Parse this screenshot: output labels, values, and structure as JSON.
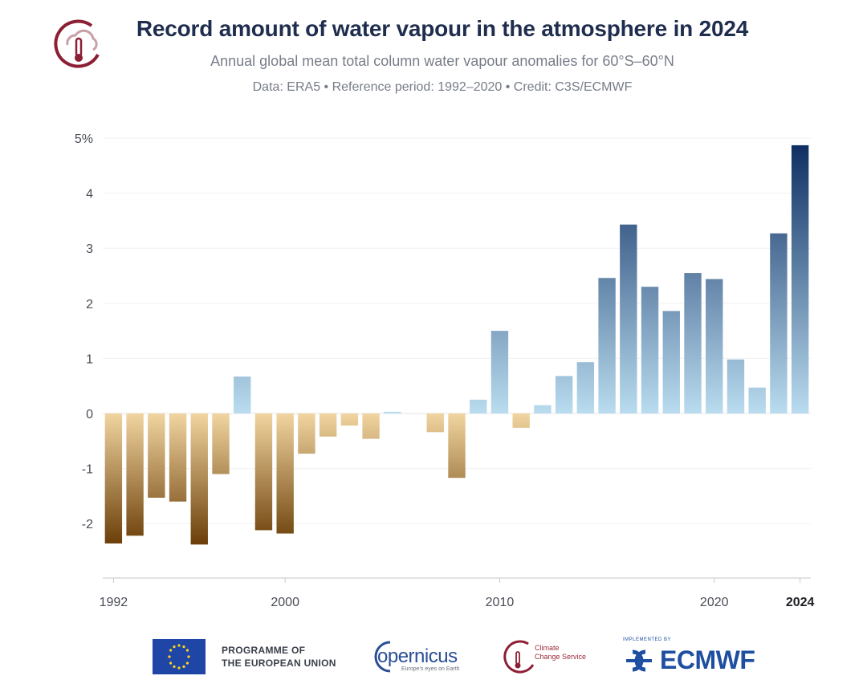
{
  "header": {
    "title": "Record amount of water vapour in the atmosphere in 2024",
    "subtitle": "Annual global mean total column water vapour anomalies for 60°S–60°N",
    "credit": "Data: ERA5 • Reference period: 1992–2020 • Credit: C3S/ECMWF"
  },
  "chart_data": {
    "type": "bar",
    "title": "Record amount of water vapour in the atmosphere in 2024",
    "xlabel": "",
    "ylabel": "",
    "ylim": [
      -2.9,
      5.0
    ],
    "yticks": [
      {
        "value": 5,
        "label": "5%"
      },
      {
        "value": 4,
        "label": "4"
      },
      {
        "value": 3,
        "label": "3"
      },
      {
        "value": 2,
        "label": "2"
      },
      {
        "value": 1,
        "label": "1"
      },
      {
        "value": 0,
        "label": "0"
      },
      {
        "value": -1,
        "label": "-1"
      },
      {
        "value": -2,
        "label": "-2"
      }
    ],
    "xticks": [
      {
        "year": 1992,
        "label": "1992",
        "bold": false
      },
      {
        "year": 2000,
        "label": "2000",
        "bold": false
      },
      {
        "year": 2010,
        "label": "2010",
        "bold": false
      },
      {
        "year": 2020,
        "label": "2020",
        "bold": false
      },
      {
        "year": 2024,
        "label": "2024",
        "bold": true
      }
    ],
    "grid": true,
    "legend": "none",
    "colors": {
      "negative_dark": "#6b3e08",
      "negative_light": "#f1d5a0",
      "positive_light": "#b9dcef",
      "positive_dark": "#0f2f63"
    },
    "categories": [
      1992,
      1993,
      1994,
      1995,
      1996,
      1997,
      1998,
      1999,
      2000,
      2001,
      2002,
      2003,
      2004,
      2005,
      2006,
      2007,
      2008,
      2009,
      2010,
      2011,
      2012,
      2013,
      2014,
      2015,
      2016,
      2017,
      2018,
      2019,
      2020,
      2021,
      2022,
      2023,
      2024
    ],
    "values": [
      -2.36,
      -2.22,
      -1.53,
      -1.6,
      -2.38,
      -1.1,
      0.67,
      -2.12,
      -2.18,
      -0.73,
      -0.42,
      -0.22,
      -0.46,
      0.03,
      0.0,
      -0.34,
      -1.17,
      0.25,
      1.5,
      -0.26,
      0.15,
      0.68,
      0.93,
      2.46,
      3.43,
      2.3,
      1.86,
      2.55,
      2.44,
      0.98,
      0.47,
      3.27,
      4.87
    ]
  },
  "footer": {
    "eu_line1": "PROGRAMME OF",
    "eu_line2": "THE EUROPEAN UNION",
    "copernicus": "opernicus",
    "copernicus_sub": "Europe's eyes on Earth",
    "c3s_line1": "Climate",
    "c3s_line2": "Change Service",
    "ecmwf_sup": "IMPLEMENTED BY",
    "ecmwf": "ECMWF"
  }
}
